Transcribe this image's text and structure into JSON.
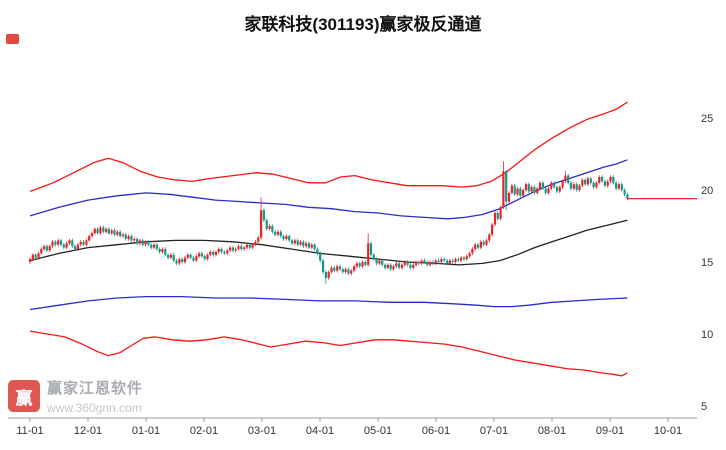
{
  "window": {
    "title": "家联科技(301193)赢家极反通道"
  },
  "watermark": {
    "logo_text": "赢",
    "brand": "赢家江恩软件",
    "url": "www.360gnn.com"
  },
  "corner_marker": {
    "color": "#e03a2f"
  },
  "chart_data": {
    "type": "candlestick",
    "title": "家联科技(301193)赢家极反通道",
    "legend_position": "none",
    "grid": "off",
    "x_axis": {
      "labels": [
        "11-01",
        "12-01",
        "01-01",
        "02-01",
        "03-01",
        "04-01",
        "05-01",
        "06-01",
        "07-01",
        "08-01",
        "09-01",
        "10-01"
      ]
    },
    "y_axis": {
      "ticks": [
        25,
        20,
        15,
        10,
        5
      ],
      "min": 4.2,
      "max": 30.5
    },
    "last_price": 19.4,
    "colors": {
      "up": "#e8232a",
      "down": "#119a8a",
      "channel_red": "#ff1313",
      "channel_blue": "#2a2ad0",
      "channel_mid": "#222222",
      "axis": "#333333"
    },
    "candles": {
      "first_open": 15.0,
      "default_wick": 0.12,
      "span_months": 10.3,
      "closes": [
        15.2,
        15.5,
        15.3,
        15.6,
        15.9,
        16.1,
        15.8,
        16.1,
        16.4,
        16.2,
        16.5,
        16.2,
        16.0,
        16.3,
        16.5,
        16.1,
        15.9,
        16.2,
        16.4,
        16.2,
        16.5,
        16.8,
        17.0,
        17.3,
        17.0,
        17.4,
        17.1,
        17.3,
        17.0,
        17.2,
        16.9,
        17.1,
        16.8,
        16.9,
        16.6,
        16.8,
        16.5,
        16.6,
        16.3,
        16.5,
        16.2,
        16.4,
        16.2,
        16.0,
        16.2,
        15.9,
        15.7,
        15.9,
        15.5,
        15.3,
        15.5,
        15.1,
        14.9,
        15.2,
        15.0,
        15.3,
        15.5,
        15.3,
        15.1,
        15.4,
        15.6,
        15.4,
        15.2,
        15.5,
        15.7,
        15.5,
        15.7,
        15.9,
        15.7,
        15.6,
        15.8,
        16.0,
        15.8,
        15.9,
        16.1,
        15.9,
        16.0,
        16.2,
        16.0,
        16.2,
        16.4,
        16.7,
        18.6,
        17.9,
        17.3,
        17.5,
        17.1,
        16.9,
        17.1,
        16.8,
        16.6,
        16.8,
        16.5,
        16.3,
        16.5,
        16.2,
        16.4,
        16.1,
        16.3,
        16.0,
        16.2,
        15.9,
        15.6,
        15.1,
        14.3,
        13.9,
        14.3,
        14.6,
        14.4,
        14.7,
        14.5,
        14.3,
        14.5,
        14.2,
        14.4,
        14.7,
        14.9,
        14.7,
        15.0,
        14.8,
        16.3,
        15.5,
        15.2,
        14.9,
        15.1,
        14.8,
        14.6,
        14.8,
        14.5,
        14.7,
        14.9,
        14.6,
        14.8,
        15.0,
        14.8,
        14.6,
        14.8,
        15.0,
        14.9,
        15.1,
        15.0,
        14.8,
        15.0,
        14.9,
        15.1,
        15.0,
        15.2,
        15.1,
        14.9,
        15.1,
        15.0,
        15.2,
        15.1,
        15.3,
        15.2,
        15.4,
        15.6,
        15.9,
        16.2,
        16.0,
        16.4,
        16.2,
        16.5,
        16.9,
        17.6,
        18.4,
        18.0,
        18.8,
        21.3,
        19.2,
        19.8,
        20.3,
        19.7,
        20.1,
        19.6,
        20.0,
        20.4,
        19.9,
        20.2,
        19.8,
        20.1,
        20.5,
        20.1,
        19.8,
        20.1,
        20.5,
        20.2,
        19.9,
        20.2,
        20.6,
        21.0,
        20.5,
        20.1,
        20.4,
        20.0,
        20.3,
        20.7,
        20.4,
        20.8,
        20.5,
        20.2,
        20.5,
        20.9,
        20.6,
        20.3,
        20.6,
        20.9,
        20.5,
        20.1,
        20.4,
        20.0,
        19.7,
        19.4
      ],
      "overrides": {
        "82": {
          "h": 19.5
        },
        "105": {
          "l": 13.5
        },
        "120": {
          "h": 17.0
        },
        "168": {
          "h": 22.0
        },
        "169": {
          "l": 18.6
        },
        "190": {
          "h": 21.3
        }
      }
    },
    "channels": {
      "upper_red": [
        [
          0,
          19.9
        ],
        [
          0.4,
          20.5
        ],
        [
          0.8,
          21.3
        ],
        [
          1.1,
          21.9
        ],
        [
          1.35,
          22.2
        ],
        [
          1.6,
          21.9
        ],
        [
          1.9,
          21.3
        ],
        [
          2.2,
          20.9
        ],
        [
          2.5,
          20.7
        ],
        [
          2.8,
          20.6
        ],
        [
          3.1,
          20.8
        ],
        [
          3.5,
          21.0
        ],
        [
          3.9,
          21.2
        ],
        [
          4.2,
          21.1
        ],
        [
          4.5,
          20.8
        ],
        [
          4.8,
          20.5
        ],
        [
          5.1,
          20.5
        ],
        [
          5.35,
          20.9
        ],
        [
          5.6,
          21.0
        ],
        [
          5.9,
          20.7
        ],
        [
          6.2,
          20.5
        ],
        [
          6.5,
          20.3
        ],
        [
          6.8,
          20.3
        ],
        [
          7.1,
          20.3
        ],
        [
          7.45,
          20.2
        ],
        [
          7.7,
          20.3
        ],
        [
          7.95,
          20.6
        ],
        [
          8.2,
          21.2
        ],
        [
          8.45,
          22.0
        ],
        [
          8.7,
          22.8
        ],
        [
          9.0,
          23.6
        ],
        [
          9.3,
          24.3
        ],
        [
          9.6,
          24.9
        ],
        [
          9.9,
          25.3
        ],
        [
          10.1,
          25.6
        ],
        [
          10.3,
          26.1
        ]
      ],
      "upper_blue": [
        [
          0,
          18.2
        ],
        [
          0.5,
          18.8
        ],
        [
          1.0,
          19.3
        ],
        [
          1.5,
          19.6
        ],
        [
          2.0,
          19.8
        ],
        [
          2.4,
          19.7
        ],
        [
          2.8,
          19.5
        ],
        [
          3.2,
          19.3
        ],
        [
          3.6,
          19.2
        ],
        [
          4.0,
          19.1
        ],
        [
          4.4,
          19.0
        ],
        [
          4.8,
          18.8
        ],
        [
          5.2,
          18.7
        ],
        [
          5.6,
          18.5
        ],
        [
          6.0,
          18.4
        ],
        [
          6.4,
          18.2
        ],
        [
          6.8,
          18.1
        ],
        [
          7.2,
          18.0
        ],
        [
          7.5,
          18.1
        ],
        [
          7.8,
          18.3
        ],
        [
          8.1,
          18.7
        ],
        [
          8.4,
          19.3
        ],
        [
          8.7,
          19.9
        ],
        [
          9.0,
          20.4
        ],
        [
          9.3,
          20.8
        ],
        [
          9.6,
          21.2
        ],
        [
          9.9,
          21.6
        ],
        [
          10.1,
          21.8
        ],
        [
          10.3,
          22.1
        ]
      ],
      "middle_black": [
        [
          0,
          15.1
        ],
        [
          0.5,
          15.6
        ],
        [
          1.0,
          16.0
        ],
        [
          1.5,
          16.2
        ],
        [
          2.0,
          16.4
        ],
        [
          2.5,
          16.5
        ],
        [
          3.0,
          16.5
        ],
        [
          3.5,
          16.4
        ],
        [
          4.0,
          16.2
        ],
        [
          4.5,
          15.9
        ],
        [
          5.0,
          15.6
        ],
        [
          5.5,
          15.4
        ],
        [
          6.0,
          15.2
        ],
        [
          6.5,
          15.0
        ],
        [
          7.0,
          14.9
        ],
        [
          7.4,
          14.8
        ],
        [
          7.8,
          14.9
        ],
        [
          8.1,
          15.1
        ],
        [
          8.4,
          15.5
        ],
        [
          8.7,
          16.0
        ],
        [
          9.0,
          16.4
        ],
        [
          9.3,
          16.8
        ],
        [
          9.6,
          17.2
        ],
        [
          9.9,
          17.5
        ],
        [
          10.1,
          17.7
        ],
        [
          10.3,
          17.9
        ]
      ],
      "lower_blue": [
        [
          0,
          11.7
        ],
        [
          0.5,
          12.0
        ],
        [
          1.0,
          12.3
        ],
        [
          1.5,
          12.5
        ],
        [
          2.0,
          12.6
        ],
        [
          2.6,
          12.6
        ],
        [
          3.2,
          12.5
        ],
        [
          3.8,
          12.5
        ],
        [
          4.4,
          12.4
        ],
        [
          5.0,
          12.3
        ],
        [
          5.6,
          12.3
        ],
        [
          6.2,
          12.2
        ],
        [
          6.8,
          12.2
        ],
        [
          7.3,
          12.1
        ],
        [
          7.7,
          12.0
        ],
        [
          8.0,
          11.9
        ],
        [
          8.3,
          11.9
        ],
        [
          8.6,
          12.0
        ],
        [
          9.0,
          12.2
        ],
        [
          9.4,
          12.3
        ],
        [
          9.8,
          12.4
        ],
        [
          10.3,
          12.5
        ]
      ],
      "lower_red": [
        [
          0,
          10.2
        ],
        [
          0.3,
          10.0
        ],
        [
          0.6,
          9.8
        ],
        [
          0.9,
          9.3
        ],
        [
          1.15,
          8.8
        ],
        [
          1.35,
          8.5
        ],
        [
          1.55,
          8.7
        ],
        [
          1.75,
          9.2
        ],
        [
          1.95,
          9.7
        ],
        [
          2.15,
          9.8
        ],
        [
          2.45,
          9.6
        ],
        [
          2.75,
          9.5
        ],
        [
          3.05,
          9.6
        ],
        [
          3.35,
          9.8
        ],
        [
          3.65,
          9.6
        ],
        [
          3.95,
          9.3
        ],
        [
          4.15,
          9.1
        ],
        [
          4.45,
          9.3
        ],
        [
          4.75,
          9.5
        ],
        [
          5.05,
          9.4
        ],
        [
          5.35,
          9.2
        ],
        [
          5.65,
          9.4
        ],
        [
          5.95,
          9.6
        ],
        [
          6.25,
          9.6
        ],
        [
          6.55,
          9.5
        ],
        [
          6.85,
          9.4
        ],
        [
          7.15,
          9.3
        ],
        [
          7.45,
          9.1
        ],
        [
          7.75,
          8.8
        ],
        [
          8.05,
          8.5
        ],
        [
          8.35,
          8.2
        ],
        [
          8.65,
          8.0
        ],
        [
          8.95,
          7.8
        ],
        [
          9.25,
          7.6
        ],
        [
          9.55,
          7.5
        ],
        [
          9.85,
          7.3
        ],
        [
          10.05,
          7.2
        ],
        [
          10.2,
          7.1
        ],
        [
          10.3,
          7.3
        ]
      ]
    }
  }
}
